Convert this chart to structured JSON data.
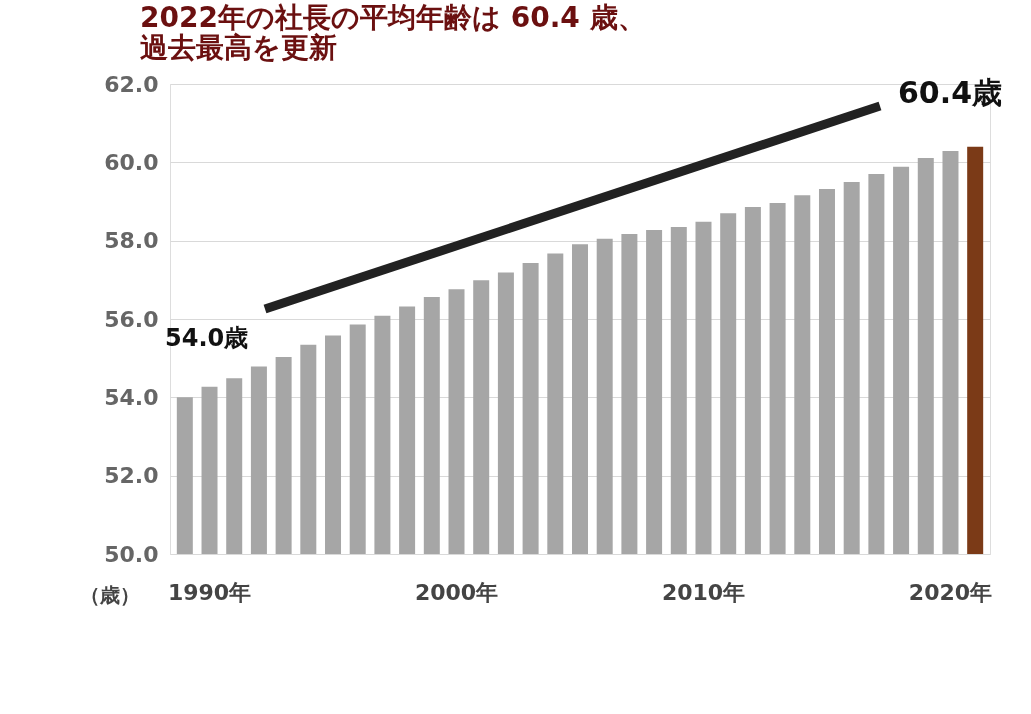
{
  "chart_data": {
    "type": "bar",
    "title": [
      "2022年の社長の平均年齢は 60.4 歳、",
      "過去最高を更新"
    ],
    "ylabel": "（歳）",
    "categories": [
      null,
      "1990年",
      null,
      null,
      null,
      null,
      null,
      null,
      null,
      null,
      null,
      "2000年",
      null,
      null,
      null,
      null,
      null,
      null,
      null,
      null,
      null,
      "2010年",
      null,
      null,
      null,
      null,
      null,
      null,
      null,
      null,
      null,
      "2020年",
      null
    ],
    "values": [
      54.0,
      54.27,
      54.49,
      54.79,
      55.03,
      55.34,
      55.58,
      55.86,
      56.08,
      56.32,
      56.56,
      56.76,
      56.99,
      57.19,
      57.43,
      57.67,
      57.91,
      58.05,
      58.17,
      58.27,
      58.35,
      58.48,
      58.7,
      58.86,
      58.96,
      59.16,
      59.32,
      59.5,
      59.7,
      59.89,
      60.11,
      60.29,
      60.4
    ],
    "colors": [
      "#a6a6a6",
      "#a6a6a6",
      "#a6a6a6",
      "#a6a6a6",
      "#a6a6a6",
      "#a6a6a6",
      "#a6a6a6",
      "#a6a6a6",
      "#a6a6a6",
      "#a6a6a6",
      "#a6a6a6",
      "#a6a6a6",
      "#a6a6a6",
      "#a6a6a6",
      "#a6a6a6",
      "#a6a6a6",
      "#a6a6a6",
      "#a6a6a6",
      "#a6a6a6",
      "#a6a6a6",
      "#a6a6a6",
      "#a6a6a6",
      "#a6a6a6",
      "#a6a6a6",
      "#a6a6a6",
      "#a6a6a6",
      "#a6a6a6",
      "#a6a6a6",
      "#a6a6a6",
      "#a6a6a6",
      "#a6a6a6",
      "#a6a6a6",
      "#7b3a17"
    ],
    "ylim": [
      50,
      62
    ],
    "yticks": [
      {
        "value": 50,
        "label": "50.0"
      },
      {
        "value": 52,
        "label": "52.0"
      },
      {
        "value": 54,
        "label": "54.0"
      },
      {
        "value": 56,
        "label": "56.0"
      },
      {
        "value": 58,
        "label": "58.0"
      },
      {
        "value": 60,
        "label": "60.0"
      },
      {
        "value": 62,
        "label": "62.0"
      }
    ],
    "annotations": [
      "54.0歳",
      "60.4歳"
    ],
    "grid": "y"
  }
}
